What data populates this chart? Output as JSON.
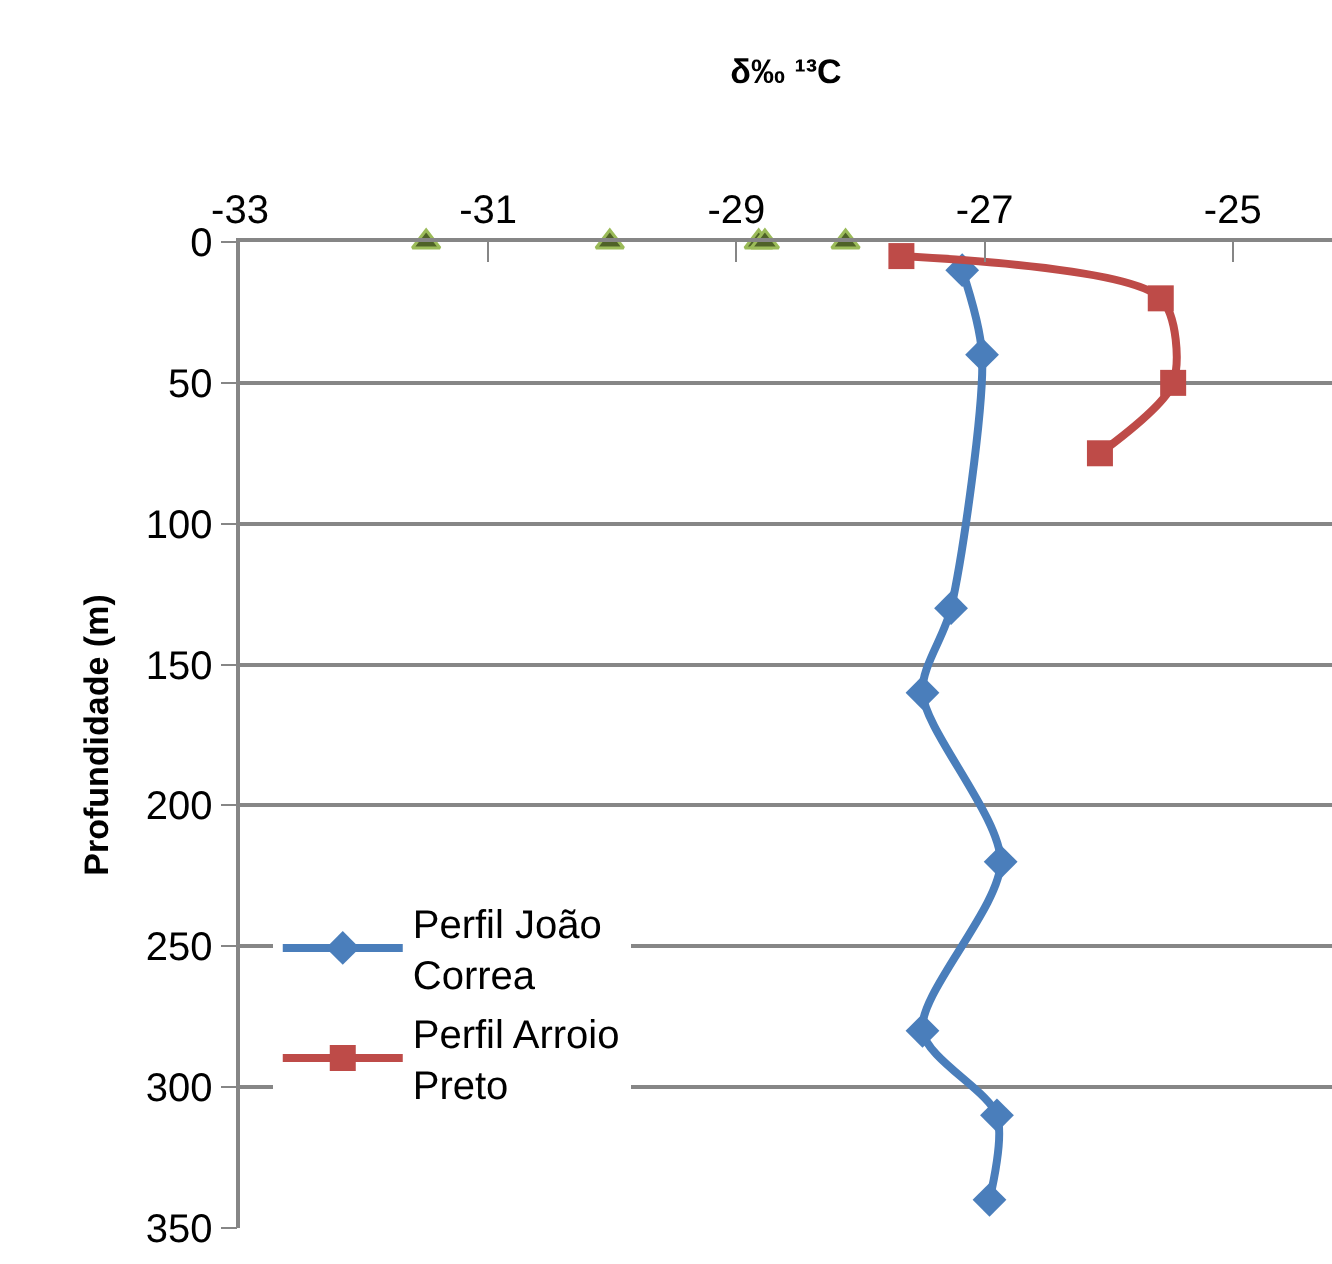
{
  "chart_data": {
    "type": "line",
    "xlabel": "δ‰ ¹³C",
    "ylabel": "Profundidade (m)",
    "xlim": [
      -33,
      -24.2
    ],
    "xticks": [
      -33,
      -31,
      -29,
      -27,
      -25
    ],
    "ylim": [
      350,
      0
    ],
    "yticks": [
      0,
      50,
      100,
      150,
      200,
      250,
      300,
      350
    ],
    "grid": "y",
    "legend": "bottom left",
    "series": [
      {
        "name": "Perfil João Correa",
        "marker": "diamond",
        "color": "#4a7ebb",
        "x": [
          -27.18,
          -27.02,
          -27.27,
          -27.5,
          -26.87,
          -27.5,
          -26.9,
          -26.96
        ],
        "values": [
          10,
          40,
          130,
          160,
          220,
          280,
          310,
          340
        ]
      },
      {
        "name": "Perfil Arroio Preto",
        "marker": "square",
        "color": "#be4b48",
        "x": [
          -27.67,
          -25.58,
          -25.48,
          -26.07
        ],
        "values": [
          5,
          20,
          50,
          75
        ]
      },
      {
        "type": "scatter",
        "marker": "triangle",
        "color": "#4f6228",
        "x": [
          -31.5,
          -30.02,
          -28.82,
          -28.77,
          -28.12
        ],
        "values": [
          0,
          0,
          0,
          0,
          0
        ]
      }
    ]
  }
}
